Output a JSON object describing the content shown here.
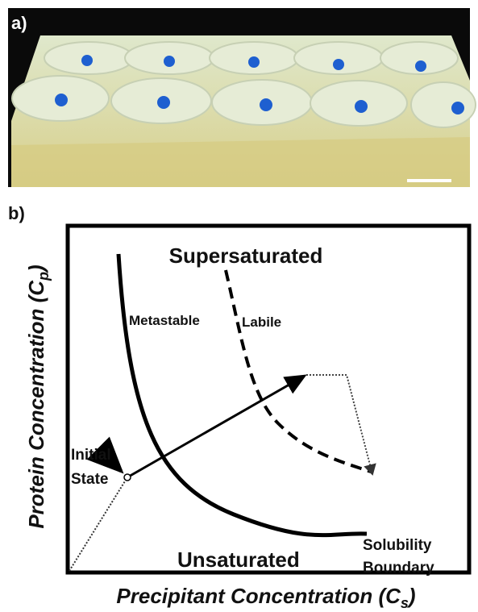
{
  "panel_a": {
    "label": "a)"
  },
  "panel_b": {
    "label": "b)",
    "regions": {
      "supersaturated": "Supersaturated",
      "metastable": "Metastable",
      "labile": "Labile",
      "unsaturated": "Unsaturated"
    },
    "initial_state": [
      "Initial",
      "State"
    ],
    "solubility_boundary": [
      "Solubility",
      "Boundary"
    ],
    "y_axis": {
      "text": "Protein Concentration (C",
      "subscript": "p",
      "suffix": ")"
    },
    "x_axis": {
      "text": "Precipitant Concentration (C",
      "subscript": "s",
      "suffix": ")"
    }
  }
}
